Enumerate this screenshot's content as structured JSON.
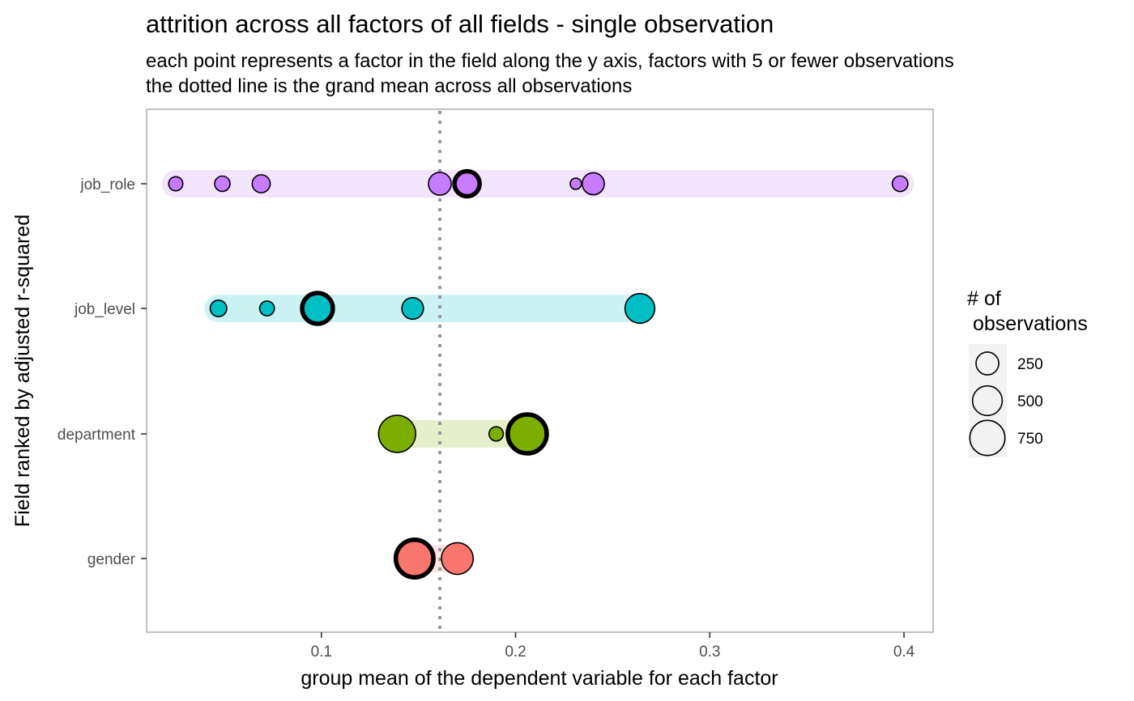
{
  "chart_data": {
    "type": "scatter",
    "title": "attrition across all factors of all fields - single observation",
    "subtitle_lines": [
      "each point represents a factor in the field along the y axis, factors with 5 or fewer observations",
      "the dotted line is the grand mean across all observations"
    ],
    "xlabel": "group mean of the dependent variable for each factor",
    "ylabel": "Field ranked by adjusted r-squared",
    "xlim": [
      0.01,
      0.415
    ],
    "x_ticks": [
      0.1,
      0.2,
      0.3,
      0.4
    ],
    "x_tick_labels": [
      "0.1",
      "0.2",
      "0.3",
      "0.4"
    ],
    "grand_mean": 0.161,
    "grid": false,
    "legend": {
      "position": "right",
      "title_lines": [
        "# of",
        " observations"
      ],
      "entries": [
        {
          "label": "250",
          "size": 250
        },
        {
          "label": "500",
          "size": 500
        },
        {
          "label": "750",
          "size": 750
        }
      ]
    },
    "series": [
      {
        "name": "job_role",
        "color": "#C77CFF",
        "band_color": "#F2E4FC",
        "points": [
          {
            "x": 0.025,
            "n": 60,
            "highlight": false
          },
          {
            "x": 0.049,
            "n": 80,
            "highlight": false
          },
          {
            "x": 0.069,
            "n": 130,
            "highlight": false
          },
          {
            "x": 0.161,
            "n": 250,
            "highlight": false
          },
          {
            "x": 0.175,
            "n": 326,
            "highlight": true
          },
          {
            "x": 0.231,
            "n": 25,
            "highlight": false
          },
          {
            "x": 0.24,
            "n": 230,
            "highlight": false
          },
          {
            "x": 0.398,
            "n": 83,
            "highlight": false
          }
        ]
      },
      {
        "name": "job_level",
        "color": "#00BFC4",
        "band_color": "#CCF2F3",
        "points": [
          {
            "x": 0.047,
            "n": 100,
            "highlight": false
          },
          {
            "x": 0.072,
            "n": 69,
            "highlight": false
          },
          {
            "x": 0.098,
            "n": 543,
            "highlight": true
          },
          {
            "x": 0.147,
            "n": 218,
            "highlight": false
          },
          {
            "x": 0.264,
            "n": 500,
            "highlight": false
          }
        ]
      },
      {
        "name": "department",
        "color": "#7CAE00",
        "band_color": "#E5EFCC",
        "points": [
          {
            "x": 0.139,
            "n": 855,
            "highlight": false
          },
          {
            "x": 0.19,
            "n": 63,
            "highlight": false
          },
          {
            "x": 0.206,
            "n": 961,
            "highlight": true
          }
        ]
      },
      {
        "name": "gender",
        "color": "#F8766D",
        "band_color": "#FEE4E2",
        "points": [
          {
            "x": 0.148,
            "n": 882,
            "highlight": true
          },
          {
            "x": 0.17,
            "n": 588,
            "highlight": false
          }
        ]
      }
    ]
  }
}
